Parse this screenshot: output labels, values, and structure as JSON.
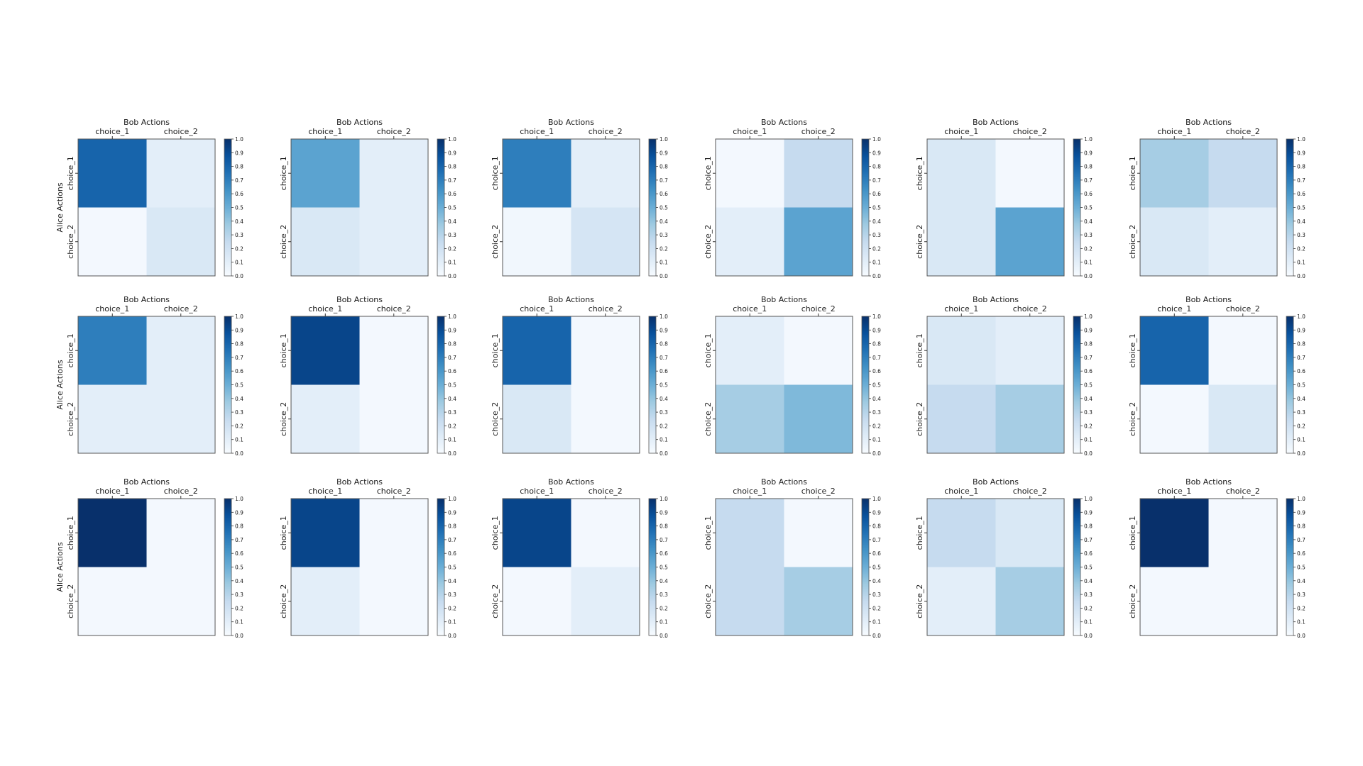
{
  "figure": {
    "top_axis_label": "Bob Actions",
    "left_axis_label": "Alice Actions",
    "col_tick_labels": [
      "choice_1",
      "choice_2"
    ],
    "row_tick_labels": [
      "choice_1",
      "choice_2"
    ],
    "colorbar_ticks": [
      "0.0",
      "0.1",
      "0.2",
      "0.3",
      "0.4",
      "0.5",
      "0.6",
      "0.7",
      "0.8",
      "0.9",
      "1.0"
    ],
    "colormap": [
      "#f7fbff",
      "#deebf7",
      "#c6dbef",
      "#9ecae1",
      "#6baed6",
      "#4292c6",
      "#2171b5",
      "#08519c",
      "#08306b"
    ],
    "frame_color": "#555555"
  },
  "chart_data": [
    {
      "type": "heatmap",
      "xlabel": "Bob Actions",
      "ylabel": "Alice Actions",
      "x": [
        "choice_1",
        "choice_2"
      ],
      "y": [
        "choice_1",
        "choice_2"
      ],
      "values": [
        [
          0.8,
          0.1
        ],
        [
          0.02,
          0.15
        ]
      ],
      "colorbar_range": [
        0,
        1
      ]
    },
    {
      "type": "heatmap",
      "xlabel": "Bob Actions",
      "ylabel": "",
      "x": [
        "choice_1",
        "choice_2"
      ],
      "y": [
        "choice_1",
        "choice_2"
      ],
      "values": [
        [
          0.55,
          0.1
        ],
        [
          0.15,
          0.1
        ]
      ],
      "colorbar_range": [
        0,
        1
      ]
    },
    {
      "type": "heatmap",
      "xlabel": "Bob Actions",
      "ylabel": "",
      "x": [
        "choice_1",
        "choice_2"
      ],
      "y": [
        "choice_1",
        "choice_2"
      ],
      "values": [
        [
          0.7,
          0.1
        ],
        [
          0.03,
          0.17
        ]
      ],
      "colorbar_range": [
        0,
        1
      ]
    },
    {
      "type": "heatmap",
      "xlabel": "Bob Actions",
      "ylabel": "",
      "x": [
        "choice_1",
        "choice_2"
      ],
      "y": [
        "choice_1",
        "choice_2"
      ],
      "values": [
        [
          0.02,
          0.25
        ],
        [
          0.1,
          0.55
        ]
      ],
      "colorbar_range": [
        0,
        1
      ]
    },
    {
      "type": "heatmap",
      "xlabel": "Bob Actions",
      "ylabel": "",
      "x": [
        "choice_1",
        "choice_2"
      ],
      "y": [
        "choice_1",
        "choice_2"
      ],
      "values": [
        [
          0.15,
          0.02
        ],
        [
          0.15,
          0.55
        ]
      ],
      "colorbar_range": [
        0,
        1
      ]
    },
    {
      "type": "heatmap",
      "xlabel": "Bob Actions",
      "ylabel": "",
      "x": [
        "choice_1",
        "choice_2"
      ],
      "y": [
        "choice_1",
        "choice_2"
      ],
      "values": [
        [
          0.35,
          0.25
        ],
        [
          0.15,
          0.1
        ]
      ],
      "colorbar_range": [
        0,
        1
      ]
    },
    {
      "type": "heatmap",
      "xlabel": "Bob Actions",
      "ylabel": "Alice Actions",
      "x": [
        "choice_1",
        "choice_2"
      ],
      "y": [
        "choice_1",
        "choice_2"
      ],
      "values": [
        [
          0.7,
          0.1
        ],
        [
          0.1,
          0.1
        ]
      ],
      "colorbar_range": [
        0,
        1
      ]
    },
    {
      "type": "heatmap",
      "xlabel": "Bob Actions",
      "ylabel": "",
      "x": [
        "choice_1",
        "choice_2"
      ],
      "y": [
        "choice_1",
        "choice_2"
      ],
      "values": [
        [
          0.92,
          0.02
        ],
        [
          0.1,
          0.02
        ]
      ],
      "colorbar_range": [
        0,
        1
      ]
    },
    {
      "type": "heatmap",
      "xlabel": "Bob Actions",
      "ylabel": "",
      "x": [
        "choice_1",
        "choice_2"
      ],
      "y": [
        "choice_1",
        "choice_2"
      ],
      "values": [
        [
          0.8,
          0.02
        ],
        [
          0.15,
          0.02
        ]
      ],
      "colorbar_range": [
        0,
        1
      ]
    },
    {
      "type": "heatmap",
      "xlabel": "Bob Actions",
      "ylabel": "",
      "x": [
        "choice_1",
        "choice_2"
      ],
      "y": [
        "choice_1",
        "choice_2"
      ],
      "values": [
        [
          0.1,
          0.02
        ],
        [
          0.35,
          0.45
        ]
      ],
      "colorbar_range": [
        0,
        1
      ]
    },
    {
      "type": "heatmap",
      "xlabel": "Bob Actions",
      "ylabel": "",
      "x": [
        "choice_1",
        "choice_2"
      ],
      "y": [
        "choice_1",
        "choice_2"
      ],
      "values": [
        [
          0.15,
          0.1
        ],
        [
          0.25,
          0.35
        ]
      ],
      "colorbar_range": [
        0,
        1
      ]
    },
    {
      "type": "heatmap",
      "xlabel": "Bob Actions",
      "ylabel": "",
      "x": [
        "choice_1",
        "choice_2"
      ],
      "y": [
        "choice_1",
        "choice_2"
      ],
      "values": [
        [
          0.8,
          0.02
        ],
        [
          0.02,
          0.15
        ]
      ],
      "colorbar_range": [
        0,
        1
      ]
    },
    {
      "type": "heatmap",
      "xlabel": "Bob Actions",
      "ylabel": "Alice Actions",
      "x": [
        "choice_1",
        "choice_2"
      ],
      "y": [
        "choice_1",
        "choice_2"
      ],
      "values": [
        [
          1.0,
          0.02
        ],
        [
          0.02,
          0.02
        ]
      ],
      "colorbar_range": [
        0,
        1
      ]
    },
    {
      "type": "heatmap",
      "xlabel": "Bob Actions",
      "ylabel": "",
      "x": [
        "choice_1",
        "choice_2"
      ],
      "y": [
        "choice_1",
        "choice_2"
      ],
      "values": [
        [
          0.92,
          0.02
        ],
        [
          0.1,
          0.02
        ]
      ],
      "colorbar_range": [
        0,
        1
      ]
    },
    {
      "type": "heatmap",
      "xlabel": "Bob Actions",
      "ylabel": "",
      "x": [
        "choice_1",
        "choice_2"
      ],
      "y": [
        "choice_1",
        "choice_2"
      ],
      "values": [
        [
          0.92,
          0.02
        ],
        [
          0.02,
          0.1
        ]
      ],
      "colorbar_range": [
        0,
        1
      ]
    },
    {
      "type": "heatmap",
      "xlabel": "Bob Actions",
      "ylabel": "",
      "x": [
        "choice_1",
        "choice_2"
      ],
      "y": [
        "choice_1",
        "choice_2"
      ],
      "values": [
        [
          0.25,
          0.02
        ],
        [
          0.25,
          0.35
        ]
      ],
      "colorbar_range": [
        0,
        1
      ]
    },
    {
      "type": "heatmap",
      "xlabel": "Bob Actions",
      "ylabel": "",
      "x": [
        "choice_1",
        "choice_2"
      ],
      "y": [
        "choice_1",
        "choice_2"
      ],
      "values": [
        [
          0.25,
          0.15
        ],
        [
          0.1,
          0.35
        ]
      ],
      "colorbar_range": [
        0,
        1
      ]
    },
    {
      "type": "heatmap",
      "xlabel": "Bob Actions",
      "ylabel": "",
      "x": [
        "choice_1",
        "choice_2"
      ],
      "y": [
        "choice_1",
        "choice_2"
      ],
      "values": [
        [
          1.0,
          0.02
        ],
        [
          0.02,
          0.02
        ]
      ],
      "colorbar_range": [
        0,
        1
      ]
    }
  ]
}
